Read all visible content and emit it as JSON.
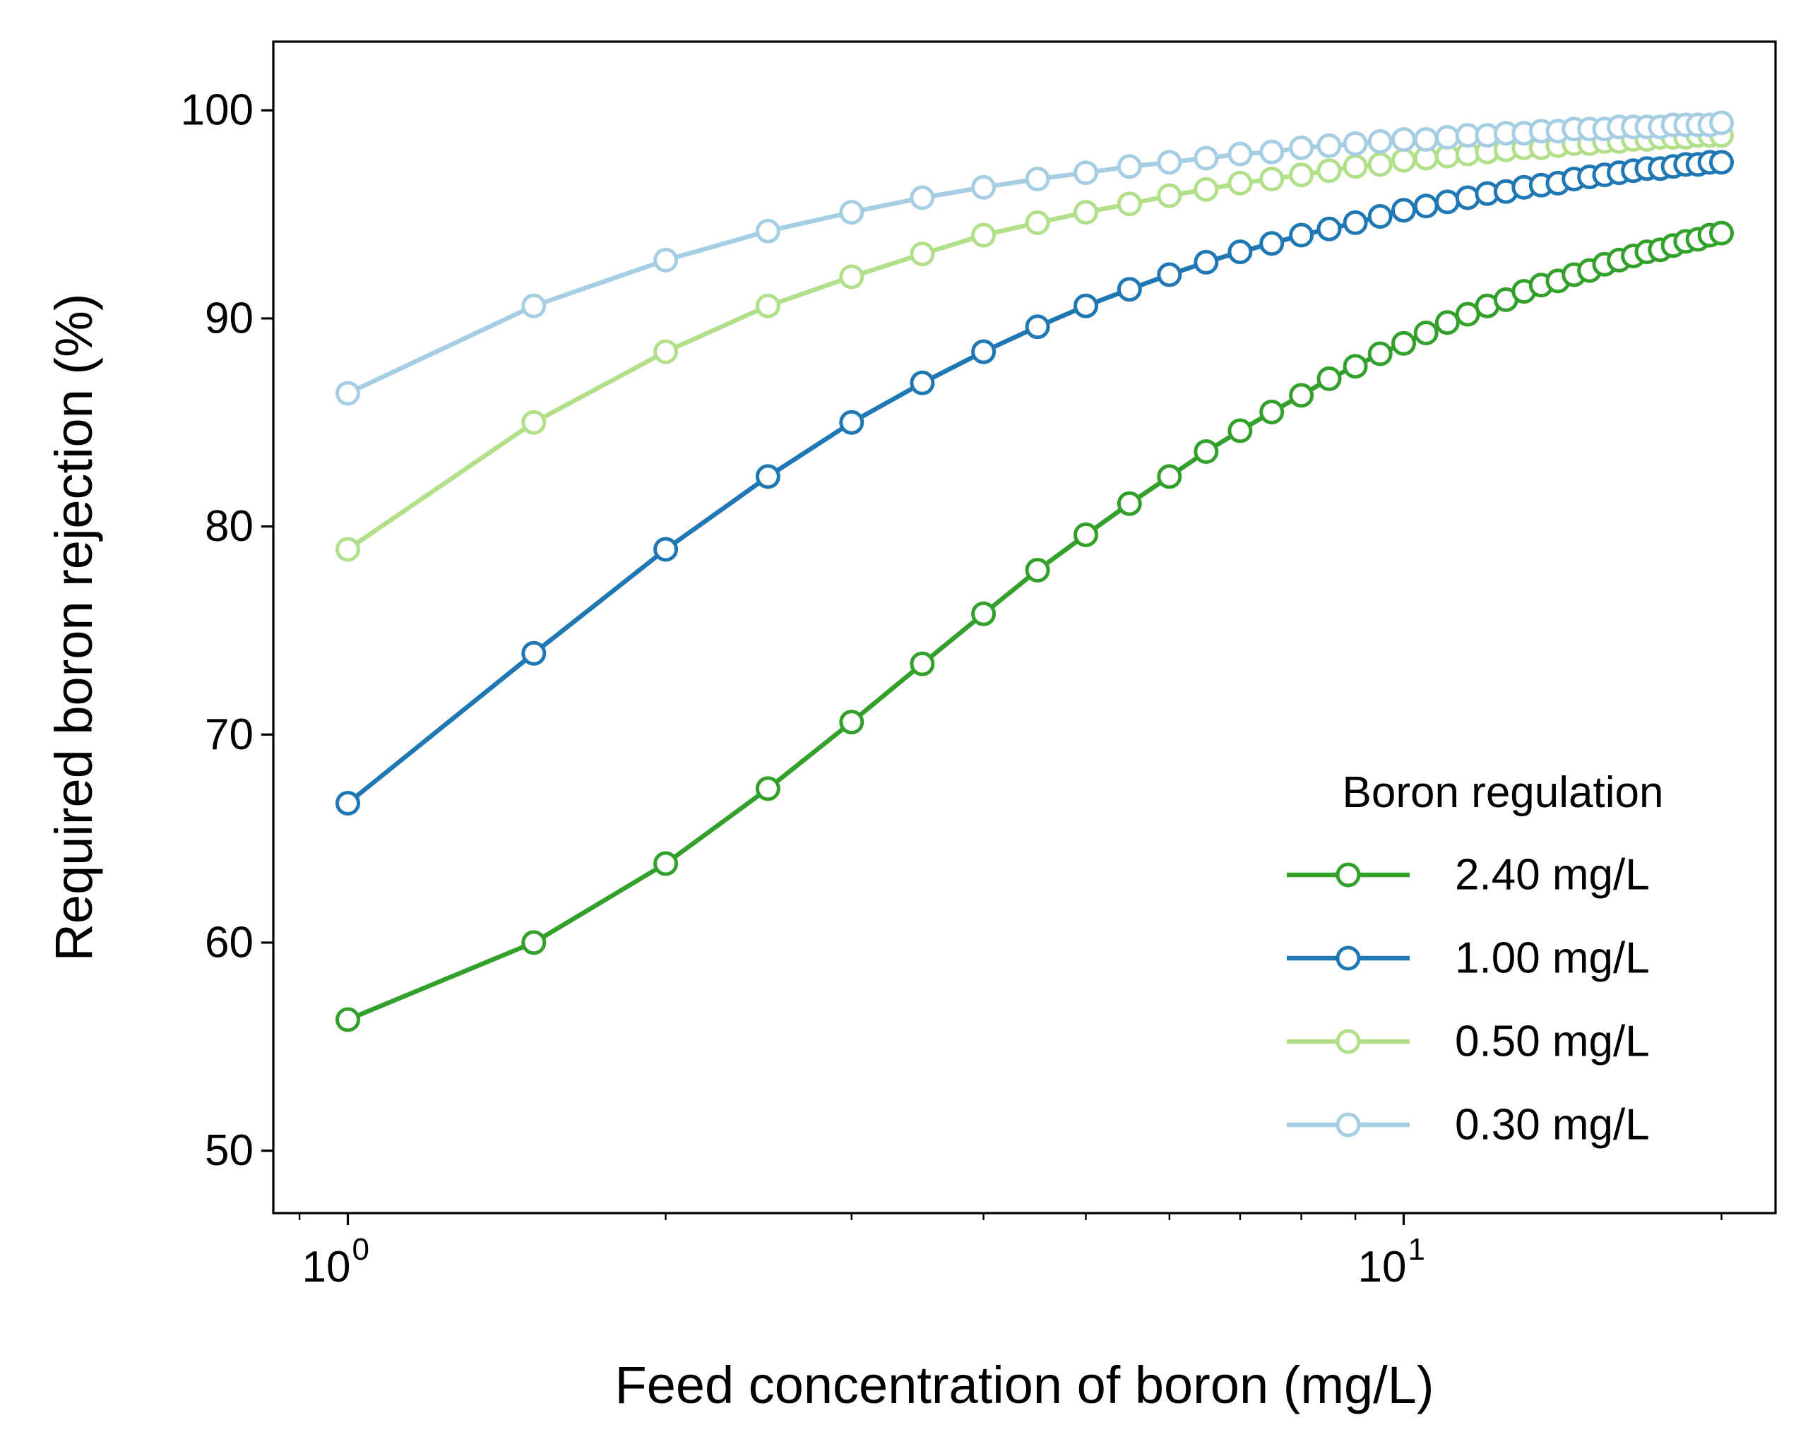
{
  "chart_data": {
    "type": "line",
    "xlabel": "Feed concentration of boron (mg/L)",
    "ylabel": "Required boron rejection (%)",
    "xscale": "log",
    "xlim": [
      0.85,
      22.5
    ],
    "ylim": [
      47,
      103.3
    ],
    "yticks": [
      {
        "value": 50,
        "label": "50"
      },
      {
        "value": 60,
        "label": "60"
      },
      {
        "value": 70,
        "label": "70"
      },
      {
        "value": 80,
        "label": "80"
      },
      {
        "value": 90,
        "label": "90"
      },
      {
        "value": 100,
        "label": "100"
      }
    ],
    "xticks": [
      {
        "value": 1,
        "base": "10",
        "exponent": "0"
      },
      {
        "value": 10,
        "base": "10",
        "exponent": "1"
      }
    ],
    "x_minor_ticks": [
      0.9,
      2,
      3,
      4,
      5,
      6,
      7,
      8,
      9,
      20
    ],
    "grid": false,
    "legend": {
      "title": "Boron regulation",
      "placement": "lower-right"
    },
    "x": [
      1,
      1.5,
      2,
      2.5,
      3,
      3.5,
      4,
      4.5,
      5,
      5.5,
      6,
      6.5,
      7,
      7.5,
      8,
      8.5,
      9,
      9.5,
      10,
      10.5,
      11,
      11.5,
      12,
      12.5,
      13,
      13.5,
      14,
      14.5,
      15,
      15.5,
      16,
      16.5,
      17,
      17.5,
      18,
      18.5,
      19,
      19.5,
      20
    ],
    "series": [
      {
        "name": "2.40 mg/L",
        "color": "#33a02c",
        "values": [
          56.3,
          60.0,
          63.8,
          67.4,
          70.6,
          73.4,
          75.8,
          77.9,
          79.6,
          81.1,
          82.4,
          83.6,
          84.6,
          85.5,
          86.3,
          87.1,
          87.7,
          88.3,
          88.8,
          89.3,
          89.8,
          90.2,
          90.6,
          90.9,
          91.3,
          91.6,
          91.8,
          92.1,
          92.3,
          92.6,
          92.8,
          93.0,
          93.2,
          93.3,
          93.5,
          93.7,
          93.8,
          94.0,
          94.1
        ]
      },
      {
        "name": "1.00 mg/L",
        "color": "#1f78b4",
        "values": [
          66.7,
          73.9,
          78.9,
          82.4,
          85.0,
          86.9,
          88.4,
          89.6,
          90.6,
          91.4,
          92.1,
          92.7,
          93.2,
          93.6,
          94.0,
          94.3,
          94.6,
          94.9,
          95.2,
          95.4,
          95.6,
          95.8,
          96.0,
          96.1,
          96.3,
          96.4,
          96.5,
          96.7,
          96.8,
          96.9,
          97.0,
          97.1,
          97.2,
          97.2,
          97.3,
          97.4,
          97.4,
          97.5,
          97.5
        ]
      },
      {
        "name": "0.50 mg/L",
        "color": "#b2df8a",
        "values": [
          78.9,
          85.0,
          88.4,
          90.6,
          92.0,
          93.1,
          94.0,
          94.6,
          95.1,
          95.5,
          95.9,
          96.2,
          96.5,
          96.7,
          96.9,
          97.1,
          97.3,
          97.4,
          97.6,
          97.7,
          97.8,
          97.9,
          98.0,
          98.1,
          98.2,
          98.2,
          98.3,
          98.4,
          98.4,
          98.5,
          98.5,
          98.6,
          98.6,
          98.7,
          98.7,
          98.7,
          98.8,
          98.8,
          98.8
        ]
      },
      {
        "name": "0.30 mg/L",
        "color": "#a6cee3",
        "values": [
          86.4,
          90.6,
          92.8,
          94.2,
          95.1,
          95.8,
          96.3,
          96.7,
          97.0,
          97.3,
          97.5,
          97.7,
          97.9,
          98.0,
          98.2,
          98.3,
          98.4,
          98.5,
          98.6,
          98.6,
          98.7,
          98.8,
          98.8,
          98.9,
          98.9,
          99.0,
          99.0,
          99.1,
          99.1,
          99.1,
          99.2,
          99.2,
          99.2,
          99.2,
          99.3,
          99.3,
          99.3,
          99.3,
          99.4
        ]
      }
    ]
  }
}
